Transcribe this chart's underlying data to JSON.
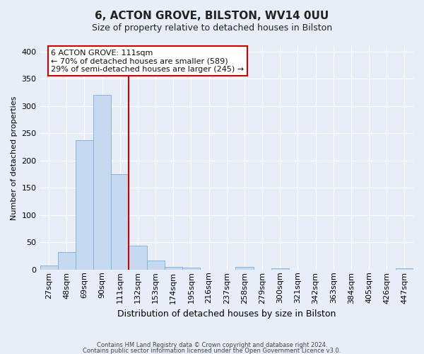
{
  "title": "6, ACTON GROVE, BILSTON, WV14 0UU",
  "subtitle": "Size of property relative to detached houses in Bilston",
  "xlabel": "Distribution of detached houses by size in Bilston",
  "ylabel": "Number of detached properties",
  "bin_labels": [
    "27sqm",
    "48sqm",
    "69sqm",
    "90sqm",
    "111sqm",
    "132sqm",
    "153sqm",
    "174sqm",
    "195sqm",
    "216sqm",
    "237sqm",
    "258sqm",
    "279sqm",
    "300sqm",
    "321sqm",
    "342sqm",
    "363sqm",
    "384sqm",
    "405sqm",
    "426sqm",
    "447sqm"
  ],
  "bar_heights": [
    8,
    32,
    237,
    320,
    175,
    44,
    16,
    5,
    4,
    0,
    0,
    5,
    0,
    2,
    0,
    0,
    0,
    0,
    0,
    0,
    2
  ],
  "bar_color": "#c6d9f1",
  "bar_edge_color": "#7bafd4",
  "vline_x_index": 4,
  "vline_color": "#cc0000",
  "ylim": [
    0,
    410
  ],
  "yticks": [
    0,
    50,
    100,
    150,
    200,
    250,
    300,
    350,
    400
  ],
  "annotation_title": "6 ACTON GROVE: 111sqm",
  "annotation_line1": "← 70% of detached houses are smaller (589)",
  "annotation_line2": "29% of semi-detached houses are larger (245) →",
  "annotation_box_facecolor": "#ffffff",
  "annotation_box_edgecolor": "#cc0000",
  "footer_line1": "Contains HM Land Registry data © Crown copyright and database right 2024.",
  "footer_line2": "Contains public sector information licensed under the Open Government Licence v3.0.",
  "bg_color": "#e8eef7",
  "plot_bg_color": "#e8eef7",
  "title_fontsize": 11,
  "subtitle_fontsize": 9,
  "ylabel_fontsize": 8,
  "xlabel_fontsize": 9,
  "tick_fontsize": 8,
  "footer_fontsize": 6,
  "annotation_fontsize": 8
}
